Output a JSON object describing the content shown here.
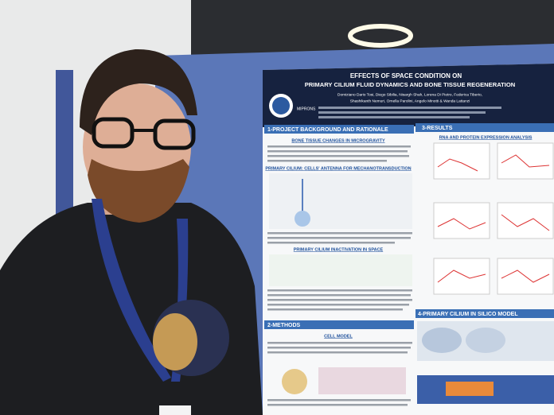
{
  "poster": {
    "title_line1": "EFFECTS OF SPACE CONDITION ON",
    "title_line2": "PRIMARY CILIUM FLUID DYNAMICS AND BONE TISSUE REGENERATION",
    "authors_line1": "Domiziano Dario Tosi, Diego Sibilia, Nisargh Shah, Lorena Di Pietro, Federica Tiberio,",
    "authors_line2": "Shashikanth Nemuri, Ornella Parolini, Angelo Minotti & Wanda Lattanzi",
    "logo": "MIPRONS",
    "sections": {
      "background": "1-PROJECT BACKGROUND AND RATIONALE",
      "results": "3-RESULTS",
      "methods": "2-METHODS",
      "in_silico": "4-PRIMARY CILIUM IN SILICO MODEL"
    },
    "subsections": {
      "bone": "BONE TISSUE CHANGES IN MICROGRAVITY",
      "rna": "RNA AND PROTEIN EXPRESSION ANALYSIS",
      "antenna": "PRIMARY CILIUM: CELLS' ANTENNA FOR MECHANOTRANSDUCTION",
      "inactivation": "PRIMARY CILIUM INACTIVATION IN SPACE",
      "cell_model": "CELL MODEL"
    }
  }
}
